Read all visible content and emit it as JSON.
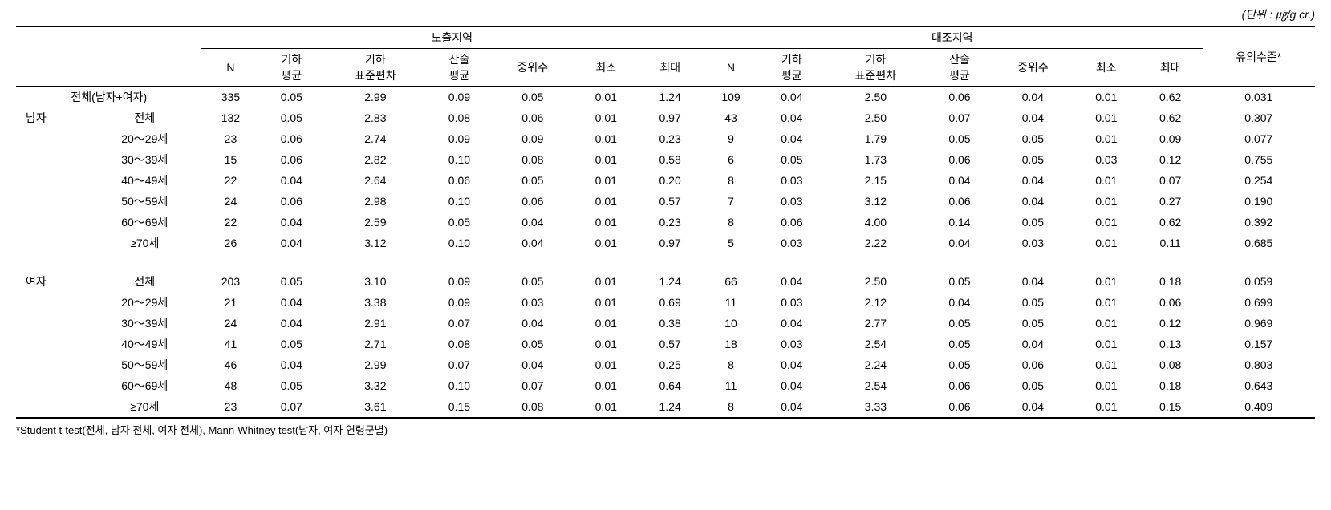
{
  "unit_label": "(단위 : ㎍/g cr.)",
  "header": {
    "group1": "노출지역",
    "group2": "대조지역",
    "sig": "유의수준*",
    "cols": [
      "N",
      "기하\n평균",
      "기하\n표준편차",
      "산술\n평균",
      "중위수",
      "최소",
      "최대"
    ]
  },
  "rows": [
    {
      "label1": "",
      "label2": "전체(남자+여자)",
      "label2_colspan": true,
      "g1": [
        "335",
        "0.05",
        "2.99",
        "0.09",
        "0.05",
        "0.01",
        "1.24"
      ],
      "g2": [
        "109",
        "0.04",
        "2.50",
        "0.06",
        "0.04",
        "0.01",
        "0.62"
      ],
      "sig": "0.031"
    },
    {
      "label1": "남자",
      "label2": "전체",
      "g1": [
        "132",
        "0.05",
        "2.83",
        "0.08",
        "0.06",
        "0.01",
        "0.97"
      ],
      "g2": [
        "43",
        "0.04",
        "2.50",
        "0.07",
        "0.04",
        "0.01",
        "0.62"
      ],
      "sig": "0.307"
    },
    {
      "label1": "",
      "label2": "20～29세",
      "g1": [
        "23",
        "0.06",
        "2.74",
        "0.09",
        "0.09",
        "0.01",
        "0.23"
      ],
      "g2": [
        "9",
        "0.04",
        "1.79",
        "0.05",
        "0.05",
        "0.01",
        "0.09"
      ],
      "sig": "0.077"
    },
    {
      "label1": "",
      "label2": "30～39세",
      "g1": [
        "15",
        "0.06",
        "2.82",
        "0.10",
        "0.08",
        "0.01",
        "0.58"
      ],
      "g2": [
        "6",
        "0.05",
        "1.73",
        "0.06",
        "0.05",
        "0.03",
        "0.12"
      ],
      "sig": "0.755"
    },
    {
      "label1": "",
      "label2": "40～49세",
      "g1": [
        "22",
        "0.04",
        "2.64",
        "0.06",
        "0.05",
        "0.01",
        "0.20"
      ],
      "g2": [
        "8",
        "0.03",
        "2.15",
        "0.04",
        "0.04",
        "0.01",
        "0.07"
      ],
      "sig": "0.254"
    },
    {
      "label1": "",
      "label2": "50～59세",
      "g1": [
        "24",
        "0.06",
        "2.98",
        "0.10",
        "0.06",
        "0.01",
        "0.57"
      ],
      "g2": [
        "7",
        "0.03",
        "3.12",
        "0.06",
        "0.04",
        "0.01",
        "0.27"
      ],
      "sig": "0.190"
    },
    {
      "label1": "",
      "label2": "60～69세",
      "g1": [
        "22",
        "0.04",
        "2.59",
        "0.05",
        "0.04",
        "0.01",
        "0.23"
      ],
      "g2": [
        "8",
        "0.06",
        "4.00",
        "0.14",
        "0.05",
        "0.01",
        "0.62"
      ],
      "sig": "0.392"
    },
    {
      "label1": "",
      "label2": "≥70세",
      "g1": [
        "26",
        "0.04",
        "3.12",
        "0.10",
        "0.04",
        "0.01",
        "0.97"
      ],
      "g2": [
        "5",
        "0.03",
        "2.22",
        "0.04",
        "0.03",
        "0.01",
        "0.11"
      ],
      "sig": "0.685"
    },
    {
      "spacer": true
    },
    {
      "label1": "여자",
      "label2": "전체",
      "g1": [
        "203",
        "0.05",
        "3.10",
        "0.09",
        "0.05",
        "0.01",
        "1.24"
      ],
      "g2": [
        "66",
        "0.04",
        "2.50",
        "0.05",
        "0.04",
        "0.01",
        "0.18"
      ],
      "sig": "0.059"
    },
    {
      "label1": "",
      "label2": "20～29세",
      "g1": [
        "21",
        "0.04",
        "3.38",
        "0.09",
        "0.03",
        "0.01",
        "0.69"
      ],
      "g2": [
        "11",
        "0.03",
        "2.12",
        "0.04",
        "0.05",
        "0.01",
        "0.06"
      ],
      "sig": "0.699"
    },
    {
      "label1": "",
      "label2": "30～39세",
      "g1": [
        "24",
        "0.04",
        "2.91",
        "0.07",
        "0.04",
        "0.01",
        "0.38"
      ],
      "g2": [
        "10",
        "0.04",
        "2.77",
        "0.05",
        "0.05",
        "0.01",
        "0.12"
      ],
      "sig": "0.969"
    },
    {
      "label1": "",
      "label2": "40～49세",
      "g1": [
        "41",
        "0.05",
        "2.71",
        "0.08",
        "0.05",
        "0.01",
        "0.57"
      ],
      "g2": [
        "18",
        "0.03",
        "2.54",
        "0.05",
        "0.04",
        "0.01",
        "0.13"
      ],
      "sig": "0.157"
    },
    {
      "label1": "",
      "label2": "50～59세",
      "g1": [
        "46",
        "0.04",
        "2.99",
        "0.07",
        "0.04",
        "0.01",
        "0.25"
      ],
      "g2": [
        "8",
        "0.04",
        "2.24",
        "0.05",
        "0.06",
        "0.01",
        "0.08"
      ],
      "sig": "0.803"
    },
    {
      "label1": "",
      "label2": "60～69세",
      "g1": [
        "48",
        "0.05",
        "3.32",
        "0.10",
        "0.07",
        "0.01",
        "0.64"
      ],
      "g2": [
        "11",
        "0.04",
        "2.54",
        "0.06",
        "0.05",
        "0.01",
        "0.18"
      ],
      "sig": "0.643"
    },
    {
      "label1": "",
      "label2": "≥70세",
      "g1": [
        "23",
        "0.07",
        "3.61",
        "0.15",
        "0.08",
        "0.01",
        "1.24"
      ],
      "g2": [
        "8",
        "0.04",
        "3.33",
        "0.06",
        "0.04",
        "0.01",
        "0.15"
      ],
      "sig": "0.409"
    }
  ],
  "footnote": "*Student t-test(전체, 남자 전체, 여자 전체), Mann-Whitney test(남자, 여자 연령군별)"
}
